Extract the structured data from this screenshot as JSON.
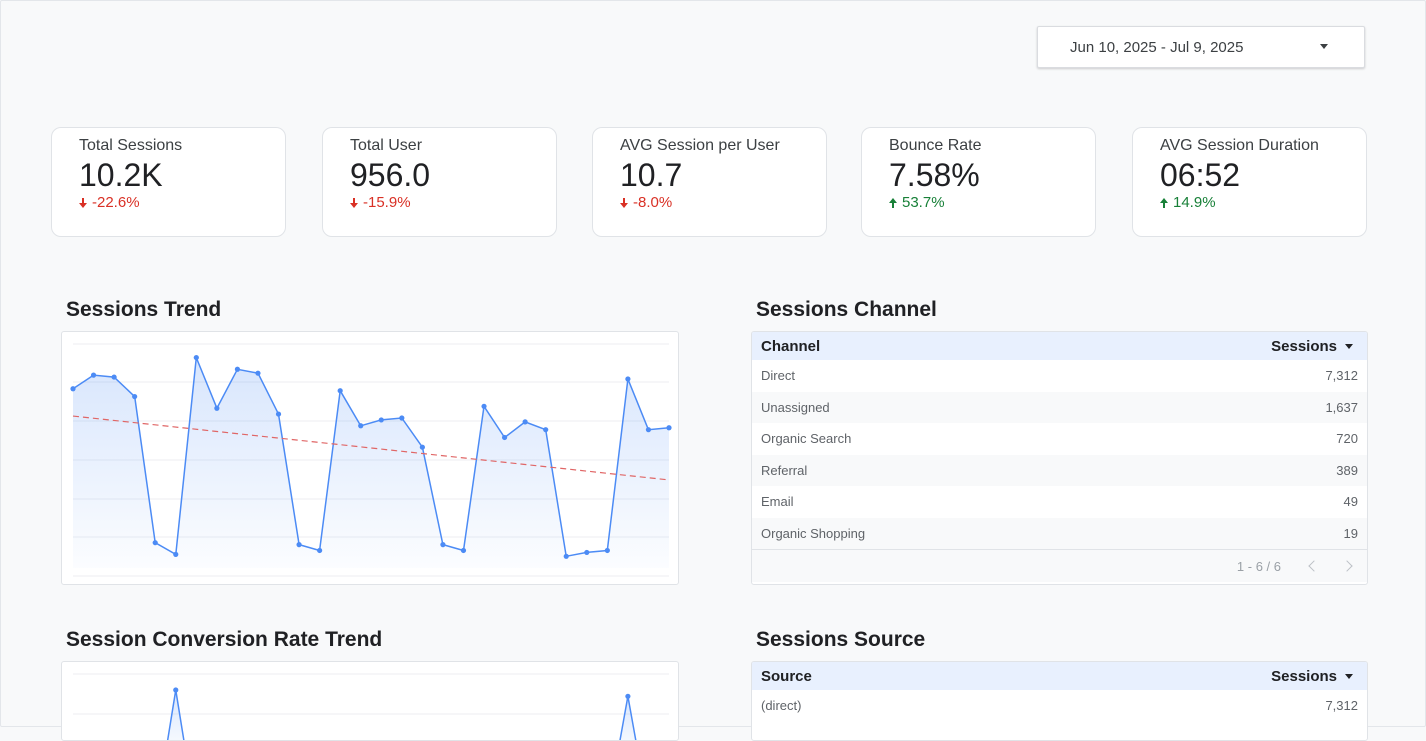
{
  "date_range": {
    "label": "Jun 10, 2025 - Jul 9, 2025"
  },
  "kpis": [
    {
      "label": "Total Sessions",
      "value": "10.2K",
      "delta": "-22.6%",
      "direction": "down"
    },
    {
      "label": "Total User",
      "value": "956.0",
      "delta": "-15.9%",
      "direction": "down"
    },
    {
      "label": "AVG Session per User",
      "value": "10.7",
      "delta": "-8.0%",
      "direction": "down"
    },
    {
      "label": "Bounce Rate",
      "value": "7.58%",
      "delta": "53.7%",
      "direction": "up"
    },
    {
      "label": "AVG Session Duration",
      "value": "06:52",
      "delta": "14.9%",
      "direction": "up"
    }
  ],
  "colors": {
    "line": "#4c8bf5",
    "trend": "#e06666",
    "down": "#d93025",
    "up": "#188038",
    "header_bg": "#e8f0fe"
  },
  "sessions_trend": {
    "title": "Sessions Trend"
  },
  "conversion_trend": {
    "title": "Session Conversion Rate Trend"
  },
  "sessions_channel": {
    "title": "Sessions Channel",
    "columns": [
      "Channel",
      "Sessions"
    ],
    "rows": [
      {
        "name": "Direct",
        "value": "7,312"
      },
      {
        "name": "Unassigned",
        "value": "1,637"
      },
      {
        "name": "Organic Search",
        "value": "720"
      },
      {
        "name": "Referral",
        "value": "389"
      },
      {
        "name": "Email",
        "value": "49"
      },
      {
        "name": "Organic Shopping",
        "value": "19"
      }
    ],
    "pagination": "1 - 6 / 6"
  },
  "sessions_source": {
    "title": "Sessions Source",
    "columns": [
      "Source",
      "Sessions"
    ],
    "rows": [
      {
        "name": "(direct)",
        "value": "7,312"
      }
    ]
  },
  "chart_data": [
    {
      "type": "line",
      "title": "Sessions Trend",
      "x": [
        1,
        2,
        3,
        4,
        5,
        6,
        7,
        8,
        9,
        10,
        11,
        12,
        13,
        14,
        15,
        16,
        17,
        18,
        19,
        20,
        21,
        22,
        23,
        24,
        25,
        26,
        27,
        28,
        29,
        30
      ],
      "series": [
        {
          "values": [
            400,
            435,
            430,
            380,
            5,
            -25,
            480,
            350,
            450,
            440,
            335,
            0,
            -15,
            395,
            305,
            320,
            325,
            250,
            0,
            -15,
            355,
            275,
            315,
            295,
            -30,
            -20,
            -15,
            425,
            295,
            300
          ]
        }
      ],
      "trendline": true,
      "ylim": [
        -60,
        520
      ],
      "grid": true
    },
    {
      "type": "line",
      "title": "Session Conversion Rate Trend",
      "x": [
        1,
        2,
        3,
        4,
        5,
        6,
        7,
        8,
        9,
        10,
        11,
        12,
        13,
        14,
        15,
        16,
        17,
        18,
        19,
        20,
        21,
        22,
        23,
        24,
        25,
        26,
        27,
        28,
        29,
        30
      ],
      "series": [
        {
          "values": [
            null,
            null,
            null,
            null,
            null,
            100,
            null,
            null,
            null,
            null,
            null,
            null,
            null,
            null,
            null,
            null,
            null,
            null,
            null,
            null,
            null,
            null,
            null,
            null,
            null,
            null,
            null,
            85,
            null,
            null
          ]
        }
      ],
      "grid": true
    }
  ]
}
